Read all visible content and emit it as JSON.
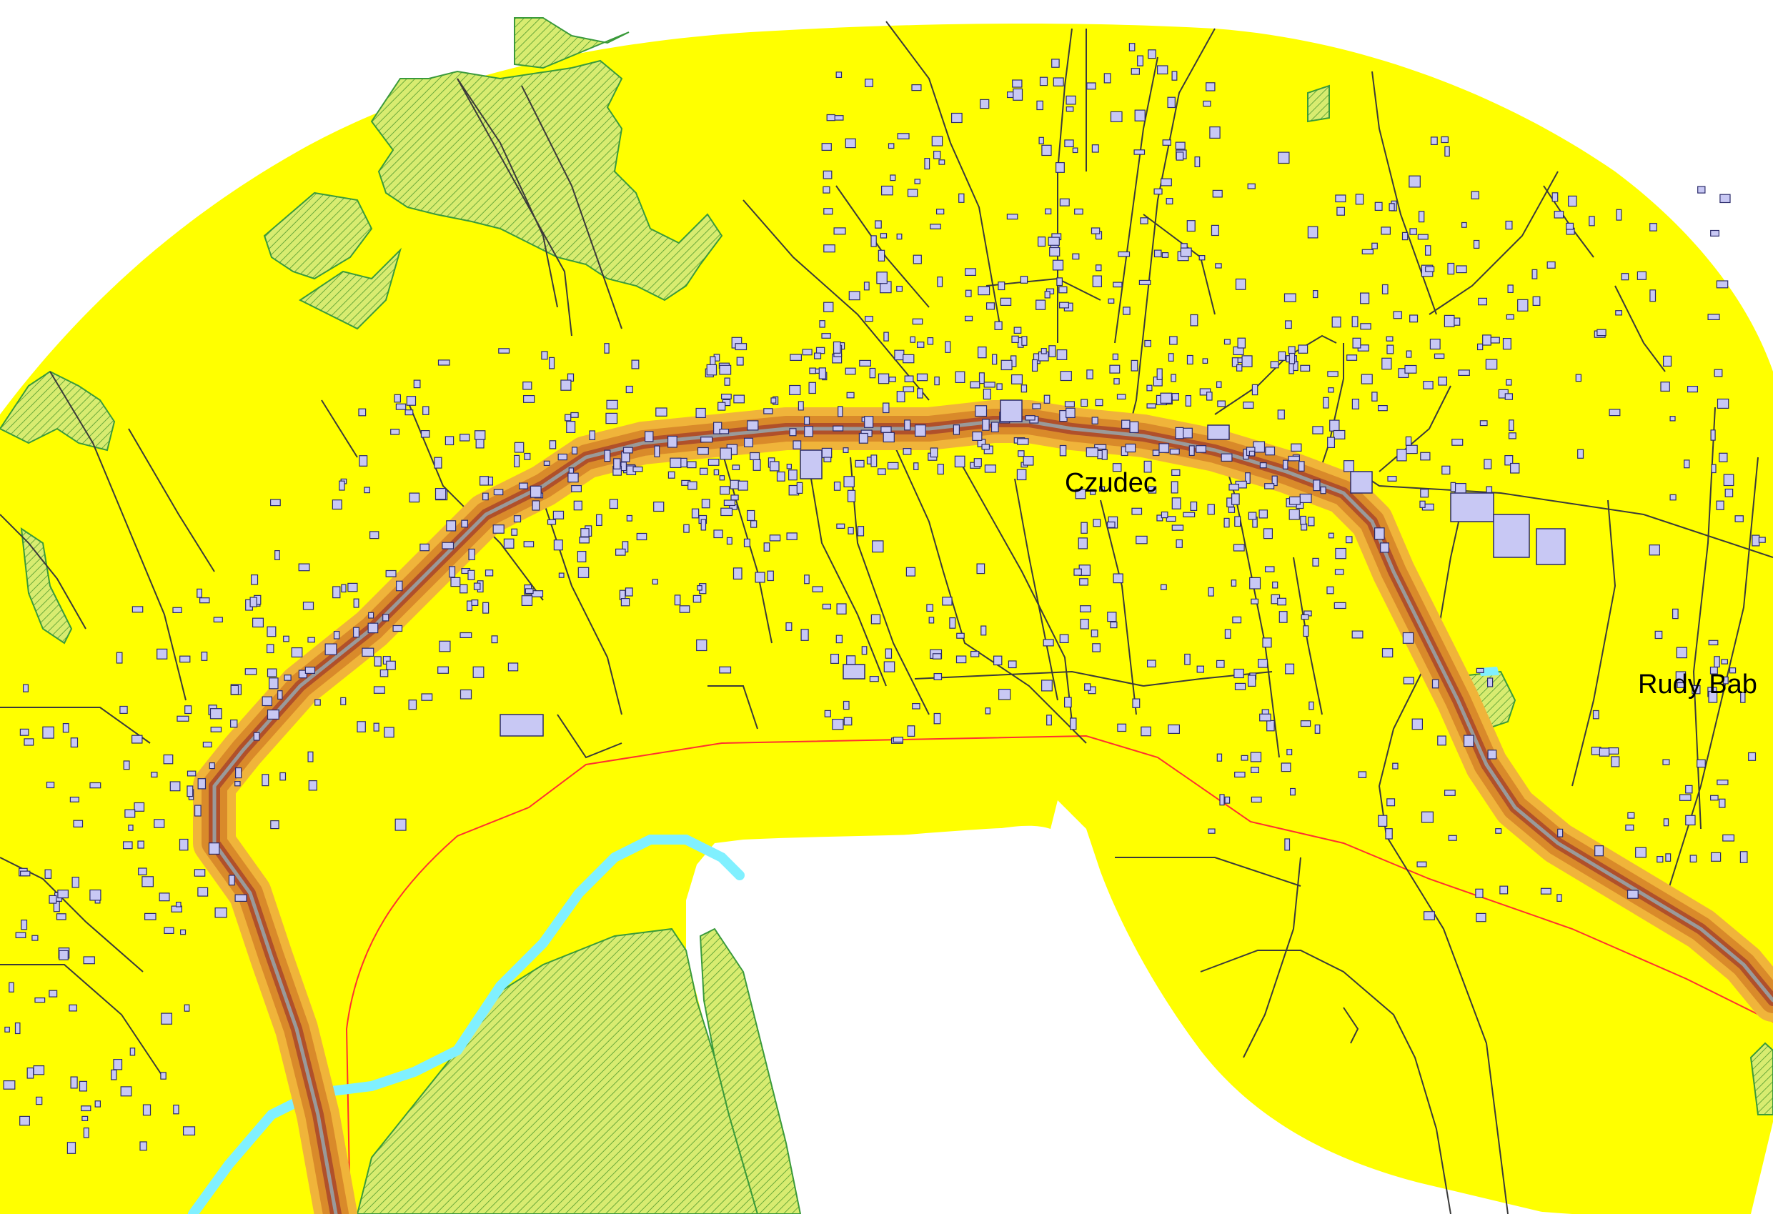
{
  "map": {
    "labels": {
      "czudec": "Czudec",
      "rudy_bab": "Rudy Bab"
    },
    "colors": {
      "zone": "#ffff00",
      "background": "#ffffff",
      "road_core": "#b0502a",
      "road_mid": "#d98a2a",
      "road_outer": "#f0b43a",
      "road_line": "#7a7a7a",
      "river": "#80f0ff",
      "forest_fill": "#d4e86a",
      "forest_outline": "#3a9a3a",
      "building_fill": "#c8c8f4",
      "building_outline": "#2a2a6a",
      "boundary_line": "#ff3030",
      "path_line": "#3a3a3a"
    }
  }
}
